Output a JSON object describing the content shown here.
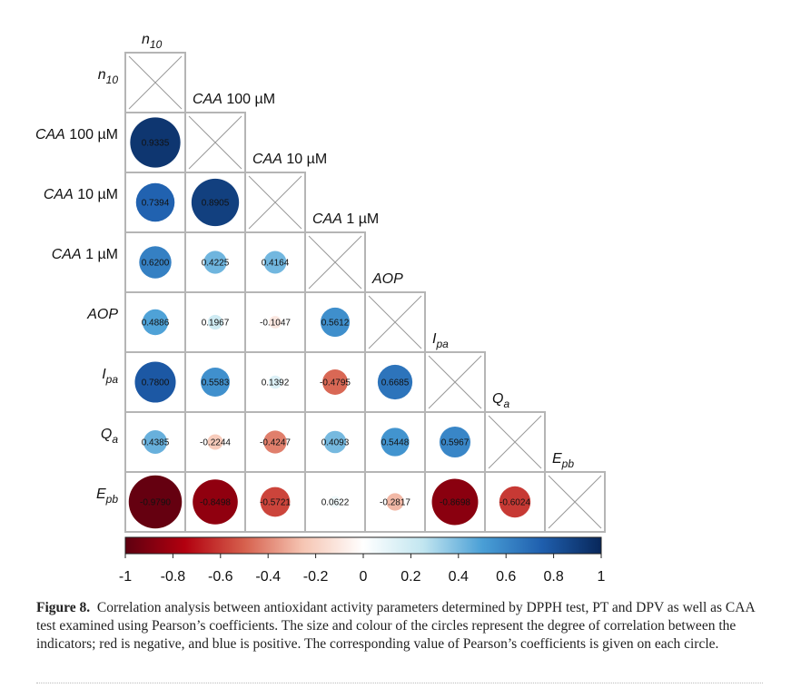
{
  "chart_data": {
    "type": "heatmap",
    "subtype": "correlation-circles-lower-triangle",
    "variables": [
      {
        "name": "n",
        "sub": "10"
      },
      {
        "name": "CAA",
        "suffix": " 100 µM"
      },
      {
        "name": "CAA",
        "suffix": " 10 µM"
      },
      {
        "name": "CAA",
        "suffix": " 1 µM"
      },
      {
        "name": "AOP"
      },
      {
        "name": "I",
        "sub": "pa"
      },
      {
        "name": "Q",
        "sub": "a"
      },
      {
        "name": "E",
        "sub": "pb"
      }
    ],
    "lower_triangle": [
      [],
      [
        "0.9335"
      ],
      [
        "0.7394",
        "0.8905"
      ],
      [
        "0.6200",
        "0.4225",
        "0.4164"
      ],
      [
        "0.4886",
        "0.1967",
        "-0.1047",
        "0.5612"
      ],
      [
        "0.7800",
        "0.5583",
        "0.1392",
        "-0.4795",
        "0.6685"
      ],
      [
        "0.4385",
        "-0.2244",
        "-0.4247",
        "0.4093",
        "0.5448",
        "0.5967"
      ],
      [
        "-0.9790",
        "-0.8498",
        "-0.5721",
        "0.0622",
        "-0.2817",
        "-0.8698",
        "-0.6024"
      ]
    ],
    "colorbar": {
      "range": [
        -1,
        1
      ],
      "ticks": [
        "-1",
        "-0.8",
        "-0.6",
        "-0.4",
        "-0.2",
        "0",
        "0.2",
        "0.4",
        "0.6",
        "0.8",
        "1"
      ],
      "colors": [
        "#5e0010",
        "#b2000f",
        "#d6604d",
        "#f6c6b4",
        "#ffffff",
        "#c2e6f0",
        "#4a9fd6",
        "#1f5fae",
        "#08275a"
      ]
    },
    "legend_placement": "bottom"
  },
  "caption": {
    "label": "Figure 8.",
    "text": "Correlation analysis between antioxidant activity parameters determined by DPPH test, PT and DPV as well as CAA test examined using Pearson’s coefficients. The size and colour of the circles represent the degree of correlation between the indicators; red is negative, and blue is positive. The corresponding value of Pearson’s coefficients is given on each circle."
  }
}
